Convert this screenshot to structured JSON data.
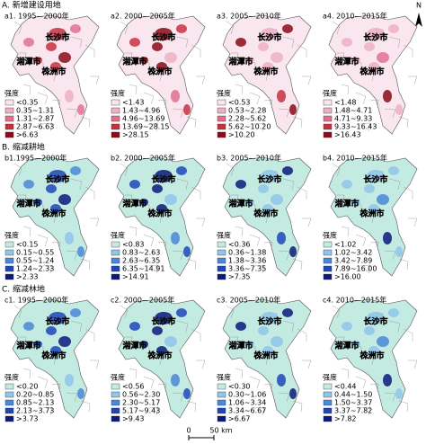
{
  "north": "N",
  "cities": [
    "长沙市",
    "湘潭市",
    "株洲市"
  ],
  "scale_bar": {
    "zero": "0",
    "label": "50 km"
  },
  "sections": [
    {
      "title": "A. 新增建设用地",
      "colors": [
        "#f9e6ee",
        "#eeb0c4",
        "#e07090",
        "#c83040",
        "#8b0b16"
      ],
      "panels": [
        {
          "label": "a1. 1995—2000年",
          "legend_title": "强度",
          "legend": [
            "<0.35",
            "0.35~1.31",
            "1.31~2.87",
            "2.87~6.63",
            ">6.63"
          ]
        },
        {
          "label": "a2. 2000—2005年",
          "legend_title": "强度",
          "legend": [
            "<1.43",
            "1.43~4.96",
            "4.96~13.69",
            "13.69~28.15",
            ">28.15"
          ]
        },
        {
          "label": "a3. 2005—2010年",
          "legend_title": "强度",
          "legend": [
            "<0.53",
            "0.53~2.28",
            "2.28~5.62",
            "5.62~10.20",
            ">10.20"
          ]
        },
        {
          "label": "a4. 2010—2015年",
          "legend_title": "强度",
          "legend": [
            "<1.48",
            "1.48~4.71",
            "4.71~9.33",
            "9.33~16.43",
            ">16.43"
          ]
        }
      ]
    },
    {
      "title": "B. 缩减耕地",
      "colors": [
        "#c4ebe2",
        "#90c6ea",
        "#4a88d8",
        "#1f47b8",
        "#0b1a7a"
      ],
      "panels": [
        {
          "label": "b1.1995—2000年",
          "legend_title": "强度",
          "legend": [
            "<0.15",
            "0.15~0.55",
            "0.55~1.24",
            "1.24~2.33",
            ">2.33"
          ]
        },
        {
          "label": "b2. 2000—2005年",
          "legend_title": "强度",
          "legend": [
            "<0.83",
            "0.83~2.63",
            "2.63~6.35",
            "6.35~14.91",
            ">14.91"
          ]
        },
        {
          "label": "b3. 2005—2010年",
          "legend_title": "强度",
          "legend": [
            "<0.36",
            "0.36~1.38",
            "1.38~3.36",
            "3.36~7.35",
            ">7.35"
          ]
        },
        {
          "label": "b4. 2010—2015年",
          "legend_title": "强度",
          "legend": [
            "<1.02",
            "1.02~3.42",
            "3.42~7.89",
            "7.89~16.00",
            ">16.00"
          ]
        }
      ]
    },
    {
      "title": "C. 缩减林地",
      "colors": [
        "#c4ebe2",
        "#90c6ea",
        "#4a88d8",
        "#1f47b8",
        "#0b1a7a"
      ],
      "panels": [
        {
          "label": "c1. 1995—2000年",
          "legend_title": "强度",
          "legend": [
            "<0.20",
            "0.20~0.85",
            "0.85~2.13",
            "2.13~3.73",
            ">3.73"
          ]
        },
        {
          "label": "c2. 2000—2005年",
          "legend_title": "强度",
          "legend": [
            "<0.56",
            "0.56~2.30",
            "2.30~5.17",
            "5.17~9.43",
            ">9.43"
          ]
        },
        {
          "label": "c3. 2005—2010年",
          "legend_title": "强度",
          "legend": [
            "<0.30",
            "0.30~1.06",
            "1.06~3.34",
            "3.34~6.67",
            ">6.67"
          ]
        },
        {
          "label": "c4. 2010—2015年",
          "legend_title": "强度",
          "legend": [
            "<0.44",
            "0.44~1.50",
            "1.50~3.37",
            "3.37~7.82",
            ">7.82"
          ]
        }
      ]
    }
  ]
}
